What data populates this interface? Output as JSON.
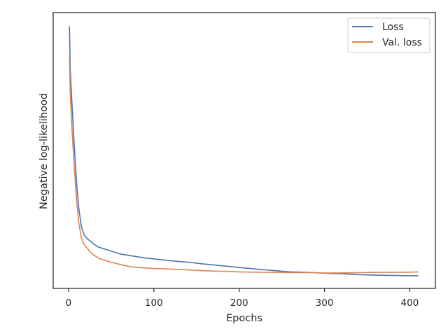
{
  "chart_data": {
    "type": "line",
    "xlabel": "Epochs",
    "ylabel": "Negative log-likelihood",
    "xlim": [
      -18,
      430
    ],
    "xticks": [
      0,
      100,
      200,
      300,
      400
    ],
    "ylim": [
      0,
      1
    ],
    "yticks_visible": false,
    "grid": false,
    "legend_position": "top-right",
    "series": [
      {
        "name": "Loss",
        "color": "#4c72b0",
        "x": [
          1,
          2,
          4,
          6,
          8,
          10,
          12,
          15,
          18,
          22,
          26,
          30,
          35,
          40,
          50,
          60,
          70,
          80,
          90,
          100,
          120,
          140,
          160,
          180,
          200,
          220,
          240,
          260,
          280,
          300,
          320,
          340,
          360,
          380,
          400,
          410
        ],
        "y": [
          0.95,
          0.79,
          0.67,
          0.555,
          0.45,
          0.36,
          0.29,
          0.225,
          0.195,
          0.18,
          0.17,
          0.16,
          0.15,
          0.145,
          0.135,
          0.125,
          0.12,
          0.115,
          0.11,
          0.107,
          0.1,
          0.095,
          0.088,
          0.082,
          0.076,
          0.07,
          0.065,
          0.06,
          0.058,
          0.055,
          0.053,
          0.05,
          0.048,
          0.047,
          0.046,
          0.046
        ]
      },
      {
        "name": "Val. loss",
        "color": "#dd8452",
        "x": [
          1,
          2,
          4,
          6,
          8,
          10,
          12,
          15,
          18,
          22,
          26,
          30,
          35,
          40,
          50,
          60,
          70,
          80,
          90,
          100,
          120,
          140,
          160,
          180,
          200,
          220,
          240,
          260,
          280,
          300,
          320,
          340,
          360,
          380,
          400,
          410
        ],
        "y": [
          0.85,
          0.7,
          0.58,
          0.47,
          0.38,
          0.3,
          0.235,
          0.185,
          0.16,
          0.145,
          0.13,
          0.12,
          0.11,
          0.104,
          0.095,
          0.087,
          0.08,
          0.076,
          0.074,
          0.072,
          0.07,
          0.067,
          0.064,
          0.062,
          0.06,
          0.059,
          0.058,
          0.057,
          0.057,
          0.056,
          0.056,
          0.057,
          0.058,
          0.058,
          0.059,
          0.06
        ]
      }
    ]
  }
}
